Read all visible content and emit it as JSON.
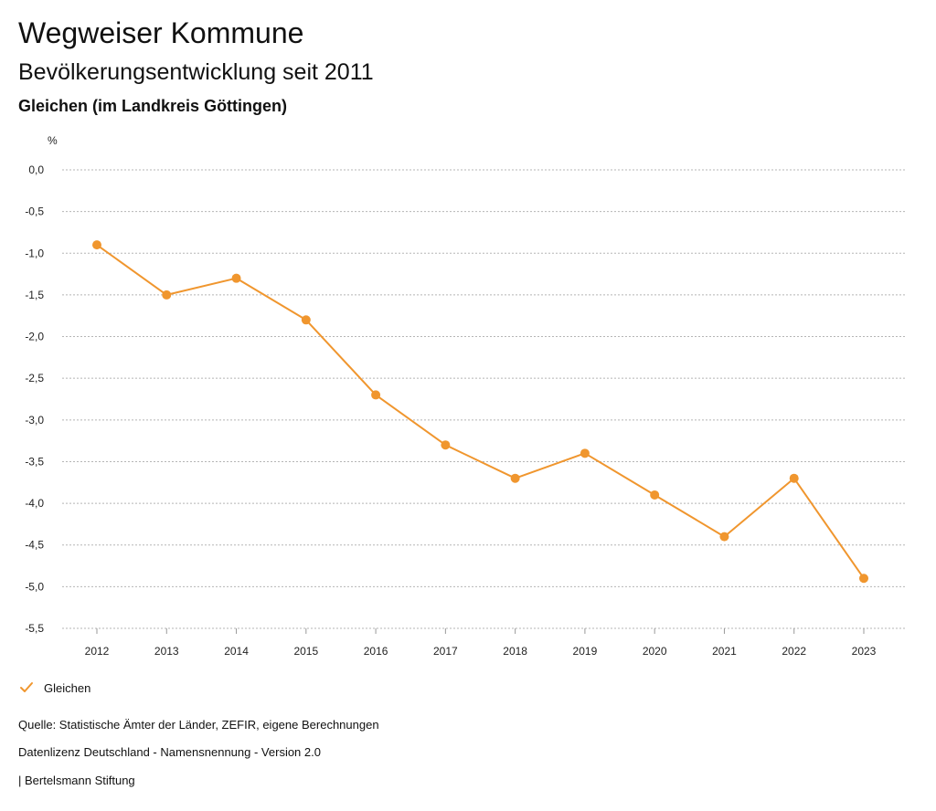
{
  "header": {
    "title": "Wegweiser Kommune",
    "subtitle": "Bevölkerungsentwicklung seit 2011",
    "region": "Gleichen (im Landkreis Göttingen)"
  },
  "chart_data": {
    "type": "line",
    "title": "Bevölkerungsentwicklung seit 2011",
    "ylabel": "%",
    "xlabel": "",
    "categories": [
      "2012",
      "2013",
      "2014",
      "2015",
      "2016",
      "2017",
      "2018",
      "2019",
      "2020",
      "2021",
      "2022",
      "2023"
    ],
    "series": [
      {
        "name": "Gleichen",
        "color": "#f0962e",
        "values": [
          -0.9,
          -1.5,
          -1.3,
          -1.8,
          -2.7,
          -3.3,
          -3.7,
          -3.4,
          -3.9,
          -4.4,
          -3.7,
          -4.9
        ]
      }
    ],
    "ylim": [
      -5.5,
      0.0
    ],
    "yticks": [
      0.0,
      -0.5,
      -1.0,
      -1.5,
      -2.0,
      -2.5,
      -3.0,
      -3.5,
      -4.0,
      -4.5,
      -5.0,
      -5.5
    ],
    "ytick_labels": [
      "0,0",
      "-0,5",
      "-1,0",
      "-1,5",
      "-2,0",
      "-2,5",
      "-3,0",
      "-3,5",
      "-4,0",
      "-4,5",
      "-5,0",
      "-5,5"
    ],
    "grid": true,
    "legend_position": "bottom-left"
  },
  "legend": {
    "label": "Gleichen"
  },
  "footer": {
    "source": "Quelle: Statistische Ämter der Länder, ZEFIR, eigene Berechnungen",
    "license": "Datenlizenz Deutschland - Namensnennung - Version 2.0",
    "publisher": "| Bertelsmann Stiftung"
  },
  "colors": {
    "series": "#f0962e",
    "grid": "#b5b5b5"
  }
}
